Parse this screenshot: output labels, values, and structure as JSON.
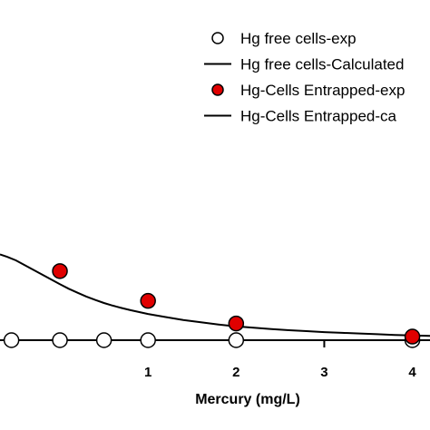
{
  "chart_data": {
    "type": "scatter",
    "xlabel": "Mercury (mg/L)",
    "ylabel": "",
    "xlim": [
      -0.68,
      4.2
    ],
    "ylim": [
      0,
      14.28
    ],
    "x_ticks": [
      "1",
      "2",
      "3",
      "4"
    ],
    "legend_position": "top-right",
    "series": [
      {
        "name": "Hg free cells-exp",
        "kind": "markers",
        "marker": "open-circle",
        "color": "#ffffff",
        "x": [
          -0.55,
          0.0,
          0.5,
          1.0,
          2.0,
          4.0
        ],
        "y": [
          0.0,
          0.0,
          0.0,
          0.0,
          0.0,
          0.0
        ]
      },
      {
        "name": "Hg free cells-Calculated",
        "kind": "line",
        "color": "#000000",
        "x": [
          -0.68,
          4.2
        ],
        "y": [
          0.0,
          0.0
        ]
      },
      {
        "name": "Hg-Cells Entrapped-exp",
        "kind": "markers",
        "marker": "filled-circle",
        "color": "#e00000",
        "x": [
          0.0,
          1.0,
          2.0,
          4.0
        ],
        "y": [
          2.9,
          1.65,
          0.7,
          0.15
        ]
      },
      {
        "name": "Hg-Cells Entrapped-calculated",
        "legend_label": "Hg-Cells Entrapped-ca",
        "kind": "line",
        "color": "#000000",
        "x": [
          -0.68,
          -0.6,
          -0.5,
          -0.4,
          -0.3,
          -0.2,
          -0.1,
          0.0,
          0.1,
          0.2,
          0.3,
          0.4,
          0.5,
          0.6,
          0.7,
          0.8,
          0.9,
          1.0,
          1.2,
          1.4,
          1.6,
          1.8,
          2.0,
          2.2,
          2.4,
          2.6,
          2.8,
          3.0,
          3.2,
          3.4,
          3.6,
          3.8,
          4.0,
          4.2
        ],
        "y": [
          3.6,
          3.5,
          3.35,
          3.15,
          2.95,
          2.75,
          2.55,
          2.35,
          2.16,
          1.99,
          1.83,
          1.69,
          1.56,
          1.45,
          1.35,
          1.26,
          1.18,
          1.1,
          0.97,
          0.85,
          0.75,
          0.66,
          0.58,
          0.52,
          0.47,
          0.42,
          0.38,
          0.34,
          0.31,
          0.28,
          0.25,
          0.22,
          0.2,
          0.18
        ]
      }
    ]
  }
}
